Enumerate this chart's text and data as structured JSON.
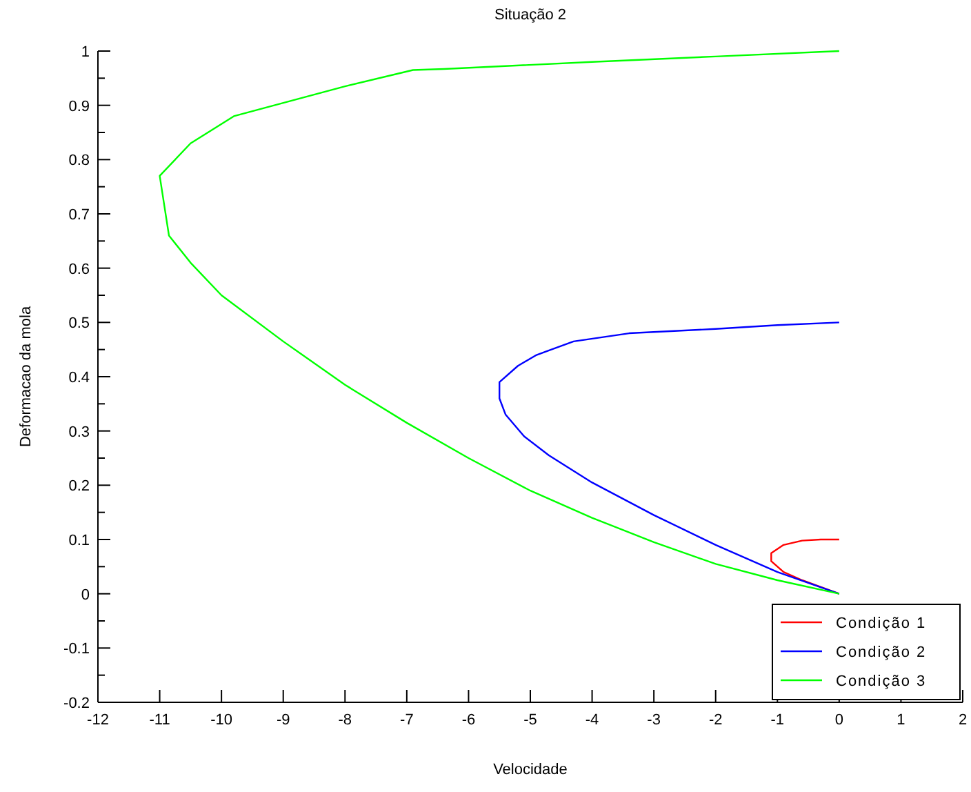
{
  "chart_data": {
    "type": "line",
    "title": "Situação 2",
    "xlabel": "Velocidade",
    "ylabel": "Deformacao da mola",
    "xlim": [
      -12,
      2
    ],
    "xticks": [
      -12,
      -11,
      -10,
      -9,
      -8,
      -7,
      -6,
      -5,
      -4,
      -3,
      -2,
      -1,
      0,
      1,
      2
    ],
    "ylim": [
      -0.2,
      1
    ],
    "yticks": [
      -0.2,
      {
        "value": -0.15,
        "label": null
      },
      -0.1,
      {
        "value": -0.05,
        "label": null
      },
      0,
      {
        "value": 0.05,
        "label": null
      },
      0.1,
      {
        "value": 0.15,
        "label": null
      },
      0.2,
      {
        "value": 0.25,
        "label": null
      },
      0.3,
      {
        "value": 0.35,
        "label": null
      },
      0.4,
      {
        "value": 0.45,
        "label": null
      },
      0.5,
      {
        "value": 0.55,
        "label": null
      },
      0.6,
      {
        "value": 0.65,
        "label": null
      },
      0.7,
      {
        "value": 0.75,
        "label": null
      },
      0.8,
      {
        "value": 0.85,
        "label": null
      },
      0.9,
      {
        "value": 0.95,
        "label": null
      },
      1
    ],
    "grid": false,
    "legend": "bottom right",
    "line_style": "solid",
    "series": [
      {
        "name": "Condição 1",
        "color": "#ff0000",
        "x": [
          0,
          -0.3,
          -0.6,
          -0.9,
          -1.1,
          -1.1,
          -0.9,
          -0.6,
          0
        ],
        "values": [
          0.1,
          0.1,
          0.098,
          0.09,
          0.075,
          0.06,
          0.04,
          0.025,
          0
        ]
      },
      {
        "name": "Condição 2",
        "color": "#0000ff",
        "x": [
          0,
          -1,
          -2,
          -3.4,
          -4.3,
          -4.9,
          -5.2,
          -5.5,
          -5.5,
          -5.4,
          -5.1,
          -4.7,
          -4,
          -3,
          -2,
          -1,
          0
        ],
        "values": [
          0.5,
          0.495,
          0.488,
          0.48,
          0.465,
          0.44,
          0.42,
          0.39,
          0.36,
          0.33,
          0.29,
          0.255,
          0.205,
          0.145,
          0.09,
          0.04,
          0
        ]
      },
      {
        "name": "Condição 3",
        "color": "#00ff00",
        "x": [
          0,
          -2,
          -4,
          -6.4,
          -6.9,
          -8,
          -9.8,
          -10.5,
          -11,
          -10.85,
          -10.5,
          -10,
          -9,
          -8,
          -7,
          -6,
          -5,
          -4,
          -3,
          -2,
          -1,
          0
        ],
        "values": [
          1,
          0.99,
          0.98,
          0.967,
          0.965,
          0.935,
          0.88,
          0.83,
          0.77,
          0.66,
          0.61,
          0.55,
          0.465,
          0.385,
          0.315,
          0.25,
          0.19,
          0.14,
          0.095,
          0.055,
          0.025,
          0
        ]
      }
    ]
  }
}
